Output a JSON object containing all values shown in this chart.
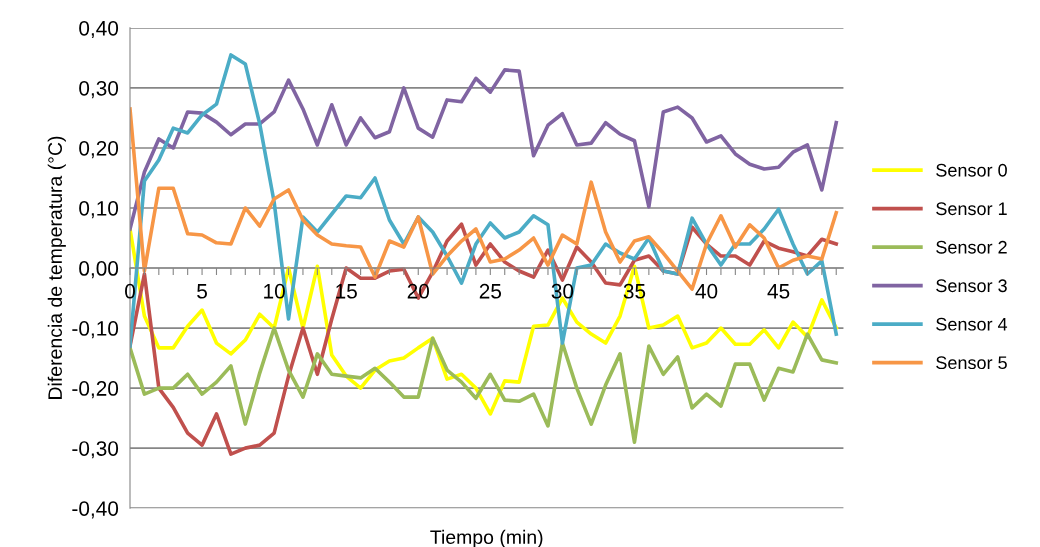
{
  "chart_data": {
    "type": "line",
    "xlabel": "Tiempo (min)",
    "ylabel": "Diferencia de temperatura (°C)",
    "x": [
      0,
      1,
      2,
      3,
      4,
      5,
      6,
      7,
      8,
      9,
      10,
      11,
      12,
      13,
      14,
      15,
      16,
      17,
      18,
      19,
      20,
      21,
      22,
      23,
      24,
      25,
      26,
      27,
      28,
      29,
      30,
      31,
      32,
      33,
      34,
      35,
      36,
      37,
      38,
      39,
      40,
      41,
      42,
      43,
      44,
      45,
      46,
      47,
      48,
      49
    ],
    "xlim": [
      0,
      49.5
    ],
    "xticks": [
      0,
      {
        "value": 1,
        "label": null
      },
      {
        "value": 2,
        "label": null
      },
      {
        "value": 3,
        "label": null
      },
      {
        "value": 4,
        "label": null
      },
      5,
      {
        "value": 6,
        "label": null
      },
      {
        "value": 7,
        "label": null
      },
      {
        "value": 8,
        "label": null
      },
      {
        "value": 9,
        "label": null
      },
      10,
      {
        "value": 11,
        "label": null
      },
      {
        "value": 12,
        "label": null
      },
      {
        "value": 13,
        "label": null
      },
      {
        "value": 14,
        "label": null
      },
      15,
      {
        "value": 16,
        "label": null
      },
      {
        "value": 17,
        "label": null
      },
      {
        "value": 18,
        "label": null
      },
      {
        "value": 19,
        "label": null
      },
      20,
      {
        "value": 21,
        "label": null
      },
      {
        "value": 22,
        "label": null
      },
      {
        "value": 23,
        "label": null
      },
      {
        "value": 24,
        "label": null
      },
      25,
      {
        "value": 26,
        "label": null
      },
      {
        "value": 27,
        "label": null
      },
      {
        "value": 28,
        "label": null
      },
      {
        "value": 29,
        "label": null
      },
      30,
      {
        "value": 31,
        "label": null
      },
      {
        "value": 32,
        "label": null
      },
      {
        "value": 33,
        "label": null
      },
      {
        "value": 34,
        "label": null
      },
      35,
      {
        "value": 36,
        "label": null
      },
      {
        "value": 37,
        "label": null
      },
      {
        "value": 38,
        "label": null
      },
      {
        "value": 39,
        "label": null
      },
      40,
      {
        "value": 41,
        "label": null
      },
      {
        "value": 42,
        "label": null
      },
      {
        "value": 43,
        "label": null
      },
      {
        "value": 44,
        "label": null
      },
      45,
      {
        "value": 46,
        "label": null
      },
      {
        "value": 47,
        "label": null
      },
      {
        "value": 48,
        "label": null
      },
      {
        "value": 49,
        "label": null
      }
    ],
    "ylim": [
      -0.4,
      0.4
    ],
    "yticks": [
      {
        "value": -0.4,
        "label": "-0,40"
      },
      {
        "value": -0.3,
        "label": "-0,30"
      },
      {
        "value": -0.2,
        "label": "-0,20"
      },
      {
        "value": -0.1,
        "label": "-0,10"
      },
      {
        "value": 0,
        "label": "0,00"
      },
      {
        "value": 0.1,
        "label": "0,10"
      },
      {
        "value": 0.2,
        "label": "0,20"
      },
      {
        "value": 0.3,
        "label": "0,30"
      },
      {
        "value": 0.4,
        "label": "0,40"
      }
    ],
    "grid": "y",
    "legend": "right",
    "marker": "none",
    "line_style": "solid",
    "series": [
      {
        "name": "Sensor 0",
        "color": "#ffff00",
        "values": [
          0.065,
          -0.08,
          -0.133,
          -0.133,
          -0.097,
          -0.07,
          -0.125,
          -0.143,
          -0.12,
          -0.077,
          -0.1,
          0.0,
          -0.1,
          0.003,
          -0.145,
          -0.18,
          -0.2,
          -0.17,
          -0.155,
          -0.15,
          -0.133,
          -0.117,
          -0.185,
          -0.177,
          -0.2,
          -0.243,
          -0.188,
          -0.19,
          -0.097,
          -0.095,
          -0.05,
          -0.09,
          -0.11,
          -0.125,
          -0.08,
          0.003,
          -0.1,
          -0.095,
          -0.08,
          -0.133,
          -0.125,
          -0.1,
          -0.127,
          -0.127,
          -0.103,
          -0.133,
          -0.09,
          -0.115,
          -0.053,
          -0.1
        ]
      },
      {
        "name": "Sensor 1",
        "color": "#c0504d",
        "values": [
          -0.13,
          -0.01,
          -0.2,
          -0.232,
          -0.275,
          -0.295,
          -0.243,
          -0.31,
          -0.3,
          -0.295,
          -0.275,
          -0.18,
          -0.1,
          -0.177,
          -0.085,
          0.0,
          -0.017,
          -0.017,
          -0.005,
          -0.002,
          -0.05,
          -0.007,
          0.045,
          0.073,
          0.005,
          0.04,
          0.01,
          -0.005,
          -0.015,
          0.03,
          -0.02,
          0.035,
          0.01,
          -0.025,
          -0.028,
          0.013,
          0.02,
          -0.005,
          -0.01,
          0.068,
          0.04,
          0.02,
          0.02,
          0.005,
          0.045,
          0.033,
          0.027,
          0.02,
          0.048,
          0.04
        ]
      },
      {
        "name": "Sensor 2",
        "color": "#9bbb59",
        "values": [
          -0.133,
          -0.21,
          -0.2,
          -0.2,
          -0.177,
          -0.21,
          -0.19,
          -0.163,
          -0.26,
          -0.175,
          -0.1,
          -0.17,
          -0.215,
          -0.143,
          -0.177,
          -0.18,
          -0.183,
          -0.167,
          -0.19,
          -0.215,
          -0.215,
          -0.117,
          -0.17,
          -0.19,
          -0.217,
          -0.177,
          -0.22,
          -0.222,
          -0.21,
          -0.263,
          -0.125,
          -0.2,
          -0.26,
          -0.195,
          -0.143,
          -0.29,
          -0.13,
          -0.177,
          -0.148,
          -0.233,
          -0.21,
          -0.23,
          -0.16,
          -0.16,
          -0.22,
          -0.167,
          -0.173,
          -0.11,
          -0.153,
          -0.158
        ]
      },
      {
        "name": "Sensor 3",
        "color": "#8064a2",
        "values": [
          0.065,
          0.16,
          0.215,
          0.2,
          0.26,
          0.258,
          0.243,
          0.222,
          0.24,
          0.24,
          0.26,
          0.313,
          0.265,
          0.205,
          0.272,
          0.205,
          0.25,
          0.217,
          0.227,
          0.3,
          0.233,
          0.218,
          0.28,
          0.277,
          0.316,
          0.293,
          0.33,
          0.328,
          0.187,
          0.238,
          0.257,
          0.205,
          0.208,
          0.242,
          0.223,
          0.212,
          0.102,
          0.26,
          0.268,
          0.25,
          0.21,
          0.22,
          0.19,
          0.173,
          0.165,
          0.168,
          0.193,
          0.205,
          0.13,
          0.242
        ]
      },
      {
        "name": "Sensor 4",
        "color": "#4bacc6",
        "values": [
          -0.13,
          0.145,
          0.18,
          0.233,
          0.225,
          0.255,
          0.273,
          0.355,
          0.34,
          0.24,
          0.11,
          -0.085,
          0.085,
          0.06,
          0.09,
          0.12,
          0.117,
          0.15,
          0.08,
          0.04,
          0.085,
          0.06,
          0.02,
          -0.025,
          0.04,
          0.075,
          0.05,
          0.06,
          0.087,
          0.072,
          -0.125,
          0.0,
          0.005,
          0.04,
          0.025,
          0.015,
          0.05,
          -0.005,
          -0.01,
          0.083,
          0.04,
          0.005,
          0.04,
          0.04,
          0.065,
          0.098,
          0.04,
          -0.01,
          0.012,
          -0.11
        ]
      },
      {
        "name": "Sensor 5",
        "color": "#f79646",
        "values": [
          0.265,
          -0.005,
          0.133,
          0.133,
          0.057,
          0.055,
          0.042,
          0.04,
          0.1,
          0.07,
          0.115,
          0.13,
          0.08,
          0.055,
          0.04,
          0.037,
          0.035,
          -0.015,
          0.045,
          0.035,
          0.085,
          -0.01,
          0.02,
          0.045,
          0.065,
          0.01,
          0.015,
          0.03,
          0.05,
          0.005,
          0.055,
          0.04,
          0.143,
          0.06,
          0.01,
          0.045,
          0.052,
          0.025,
          -0.005,
          -0.035,
          0.04,
          0.087,
          0.035,
          0.072,
          0.05,
          0.0,
          0.013,
          0.02,
          0.015,
          0.092
        ]
      }
    ]
  }
}
